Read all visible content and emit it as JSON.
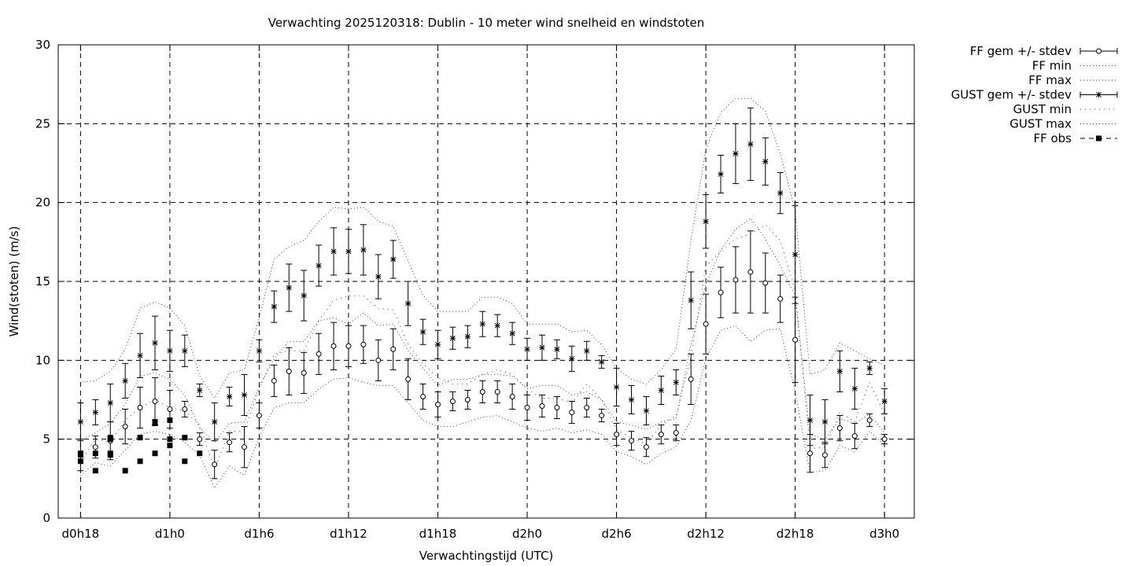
{
  "chart_data": {
    "type": "line",
    "title": "Verwachting 2025120318: Dublin - 10 meter wind snelheid en windstoten",
    "xlabel": "Verwachtingstijd (UTC)",
    "ylabel": "Wind(stoten) (m/s)",
    "ylim": [
      0,
      30
    ],
    "yticks": [
      0,
      5,
      10,
      15,
      20,
      25,
      30
    ],
    "xlim": [
      -1.5,
      56
    ],
    "xtick_positions": [
      0,
      6,
      12,
      18,
      24,
      30,
      36,
      42,
      48,
      54
    ],
    "xtick_labels": [
      "d0h18",
      "d1h0",
      "d1h6",
      "d1h12",
      "d1h18",
      "d2h0",
      "d2h6",
      "d2h12",
      "d2h18",
      "d3h0"
    ],
    "grid": true,
    "legend_position": "outside-top-right",
    "legend": [
      "FF gem +/- stdev",
      "FF min",
      "FF max",
      "GUST gem +/- stdev",
      "GUST min",
      "GUST max",
      "FF obs"
    ],
    "x": [
      0,
      1,
      2,
      3,
      4,
      5,
      6,
      7,
      8,
      9,
      10,
      11,
      12,
      13,
      14,
      15,
      16,
      17,
      18,
      19,
      20,
      21,
      22,
      23,
      24,
      25,
      26,
      27,
      28,
      29,
      30,
      31,
      32,
      33,
      34,
      35,
      36,
      37,
      38,
      39,
      40,
      41,
      42,
      43,
      44,
      45,
      46,
      47,
      48,
      49,
      50,
      51,
      52,
      53,
      54
    ],
    "ff_mean": [
      4.0,
      4.5,
      4.9,
      5.8,
      7.0,
      7.4,
      6.9,
      6.9,
      5.0,
      3.4,
      4.8,
      4.5,
      6.5,
      8.7,
      9.3,
      9.2,
      10.4,
      10.9,
      10.9,
      11.0,
      10.0,
      10.7,
      8.8,
      7.7,
      7.2,
      7.4,
      7.5,
      8.0,
      8.0,
      7.7,
      7.0,
      7.1,
      7.0,
      6.7,
      7.0,
      6.5,
      5.3,
      4.9,
      4.5,
      5.3,
      5.4,
      8.8,
      12.3,
      14.3,
      15.1,
      15.6,
      14.9,
      13.9,
      11.3,
      4.1,
      4.0,
      5.7,
      5.2,
      6.2,
      5.0
    ],
    "ff_sd": [
      1.0,
      0.7,
      1.2,
      1.1,
      1.3,
      1.5,
      1.2,
      0.5,
      0.4,
      0.9,
      0.6,
      1.3,
      0.8,
      1.0,
      1.5,
      1.3,
      1.3,
      1.5,
      1.3,
      1.2,
      1.3,
      1.3,
      1.3,
      0.8,
      0.8,
      0.6,
      0.6,
      0.7,
      0.7,
      0.8,
      0.8,
      0.7,
      0.7,
      0.7,
      0.6,
      0.4,
      0.7,
      0.6,
      0.6,
      0.6,
      0.5,
      1.6,
      1.9,
      1.6,
      2.1,
      2.6,
      1.9,
      1.5,
      2.7,
      1.2,
      0.8,
      0.8,
      0.8,
      0.4,
      0.3
    ],
    "ff_min": [
      2.7,
      3.5,
      3.3,
      4.3,
      5.3,
      5.5,
      5.3,
      4.8,
      4.0,
      1.9,
      3.3,
      2.7,
      5.1,
      7.0,
      7.3,
      7.3,
      8.2,
      8.8,
      8.9,
      8.6,
      8.4,
      8.4,
      7.3,
      6.2,
      5.8,
      5.8,
      6.1,
      6.4,
      6.5,
      6.1,
      5.7,
      5.5,
      5.7,
      5.4,
      5.6,
      5.3,
      4.2,
      3.9,
      3.4,
      4.1,
      4.5,
      6.2,
      10.1,
      11.9,
      12.2,
      11.2,
      11.9,
      12.0,
      8.0,
      2.9,
      3.0,
      4.6,
      4.2,
      5.5,
      4.6
    ],
    "ff_max": [
      4.9,
      5.4,
      6.0,
      7.2,
      9.0,
      9.2,
      8.8,
      7.8,
      5.7,
      4.8,
      6.0,
      6.1,
      8.3,
      10.1,
      11.2,
      11.2,
      12.5,
      12.7,
      12.3,
      13.0,
      12.2,
      12.3,
      10.6,
      9.5,
      8.4,
      8.8,
      8.8,
      9.1,
      9.1,
      9.0,
      8.2,
      8.4,
      8.4,
      7.8,
      8.0,
      7.5,
      6.1,
      5.9,
      5.6,
      6.1,
      6.3,
      11.0,
      14.8,
      17.0,
      18.3,
      19.0,
      17.7,
      16.0,
      14.1,
      5.3,
      5.0,
      6.3,
      6.0,
      6.6,
      5.4
    ],
    "gust_mean": [
      6.1,
      6.7,
      7.3,
      8.7,
      10.3,
      11.1,
      10.6,
      10.6,
      8.1,
      6.1,
      7.7,
      7.8,
      10.6,
      13.4,
      14.6,
      14.1,
      16.0,
      16.9,
      16.9,
      17.0,
      15.3,
      16.4,
      13.6,
      11.8,
      11.0,
      11.4,
      11.5,
      12.3,
      12.2,
      11.7,
      10.7,
      10.8,
      10.7,
      10.1,
      10.6,
      9.9,
      8.3,
      7.5,
      6.8,
      8.1,
      8.6,
      13.8,
      18.8,
      21.8,
      23.1,
      23.7,
      22.6,
      20.6,
      16.7,
      6.2,
      6.1,
      9.3,
      8.2,
      9.5,
      7.4
    ],
    "gust_sd": [
      1.2,
      0.8,
      1.2,
      1.1,
      1.4,
      1.7,
      1.3,
      1.0,
      0.4,
      1.2,
      0.6,
      1.3,
      0.7,
      1.0,
      1.5,
      1.6,
      1.3,
      1.5,
      1.4,
      1.6,
      1.4,
      1.2,
      1.4,
      0.8,
      0.9,
      0.7,
      0.7,
      0.8,
      0.7,
      0.7,
      0.7,
      0.8,
      0.6,
      0.8,
      0.6,
      0.4,
      1.2,
      0.9,
      0.9,
      0.9,
      0.8,
      1.8,
      1.7,
      1.2,
      1.9,
      2.3,
      1.5,
      1.3,
      3.1,
      1.6,
      1.4,
      1.3,
      1.3,
      0.4,
      0.8
    ],
    "gust_min": [
      3.6,
      5.0,
      4.8,
      6.2,
      7.0,
      7.5,
      7.0,
      6.8,
      5.9,
      3.1,
      5.5,
      5.5,
      8.2,
      10.4,
      10.6,
      10.6,
      12.5,
      13.8,
      14.1,
      14.1,
      13.3,
      13.2,
      11.0,
      9.8,
      8.9,
      8.5,
      8.5,
      9.1,
      9.4,
      9.1,
      8.2,
      7.6,
      7.6,
      7.3,
      8.5,
      7.5,
      5.6,
      5.1,
      4.7,
      5.9,
      6.5,
      10.2,
      16.0,
      16.9,
      17.7,
      18.0,
      18.6,
      17.6,
      14.4,
      4.4,
      4.5,
      6.7,
      6.1,
      8.6,
      6.6
    ],
    "gust_max": [
      8.6,
      8.7,
      9.3,
      10.7,
      13.3,
      13.7,
      13.3,
      12.2,
      9.0,
      7.6,
      9.2,
      9.4,
      12.7,
      16.4,
      17.2,
      17.6,
      18.8,
      19.7,
      19.6,
      19.7,
      18.8,
      18.5,
      16.3,
      14.1,
      13.1,
      13.1,
      13.1,
      14.0,
      14.0,
      13.6,
      12.3,
      12.3,
      12.3,
      11.8,
      11.9,
      11.0,
      9.5,
      8.8,
      8.5,
      9.4,
      10.7,
      17.6,
      23.4,
      25.7,
      26.6,
      26.6,
      25.8,
      23.1,
      19.5,
      9.1,
      9.4,
      11.1,
      10.6,
      10.1,
      9.7
    ],
    "ff_obs_x": [
      0,
      0,
      0,
      1,
      1,
      2,
      2,
      2,
      2,
      3,
      4,
      4,
      5,
      5,
      5,
      6,
      6,
      6,
      7,
      7,
      8
    ],
    "ff_obs_y": [
      4.1,
      4.0,
      3.6,
      4.1,
      3.0,
      5.1,
      4.1,
      4.0,
      5.0,
      3.0,
      5.1,
      3.6,
      4.1,
      6.1,
      6.0,
      5.0,
      6.2,
      4.6,
      5.1,
      3.6,
      4.1
    ]
  }
}
